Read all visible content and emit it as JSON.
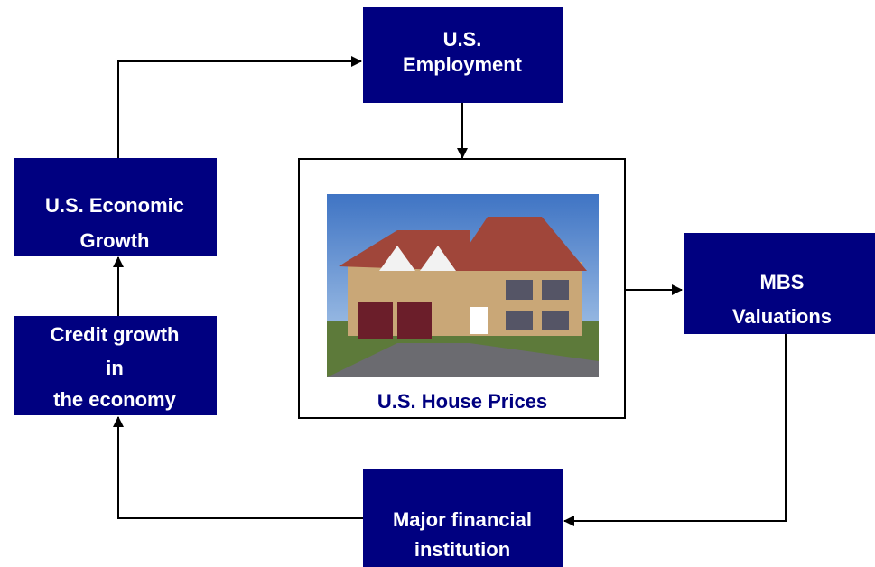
{
  "nodes": [
    {
      "lines": [
        "U.S.",
        "Employment"
      ]
    },
    {
      "lines": [
        "U.S. Economic",
        "Growth"
      ]
    },
    {
      "lines": [
        "Credit growth",
        "in",
        "the economy"
      ]
    },
    {
      "lines": [
        "U.S. House Prices"
      ]
    },
    {
      "lines": [
        "MBS",
        "Valuations"
      ]
    },
    {
      "lines": [
        "Major financial",
        "institution"
      ]
    }
  ]
}
